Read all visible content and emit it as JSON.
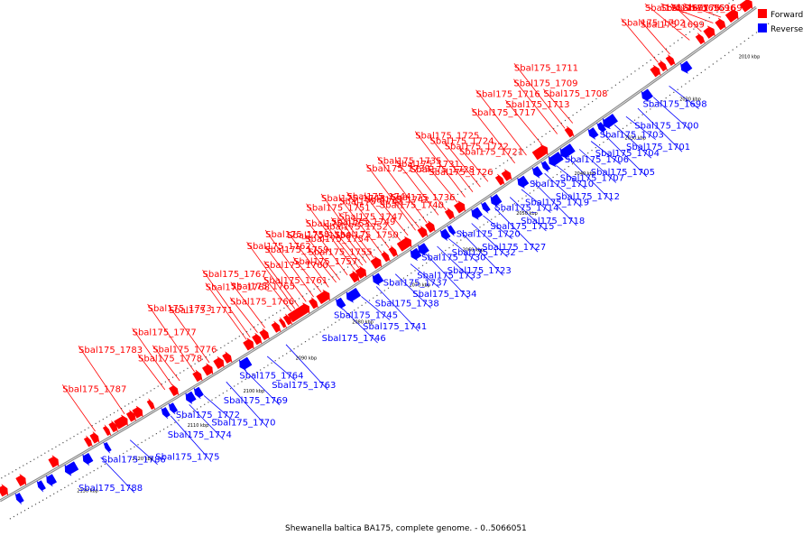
{
  "caption": "Shewanella baltica BA175, complete genome. - 0..5066051",
  "legend": {
    "forward": {
      "label": "Forward",
      "color": "#ff0000"
    },
    "reverse": {
      "label": "Reverse",
      "color": "#0000ff"
    }
  },
  "colors": {
    "forward": "#ff0000",
    "reverse": "#0000ff",
    "backbone": "#888888"
  },
  "kbp_marks": [
    {
      "label": "2010 kbp",
      "pos": 0.045
    },
    {
      "label": "2020 kbp",
      "pos": 0.12
    },
    {
      "label": "2030 kbp",
      "pos": 0.19
    },
    {
      "label": "2040 kbp",
      "pos": 0.255
    },
    {
      "label": "2050 kbp",
      "pos": 0.33
    },
    {
      "label": "2060 kbp",
      "pos": 0.4
    },
    {
      "label": "2070 kbp",
      "pos": 0.47
    },
    {
      "label": "2080 kbp",
      "pos": 0.545
    },
    {
      "label": "2090 kbp",
      "pos": 0.62
    },
    {
      "label": "2100 kbp",
      "pos": 0.69
    },
    {
      "label": "2110 kbp",
      "pos": 0.765
    },
    {
      "label": "2120 kbp",
      "pos": 0.84
    },
    {
      "label": "2130 kbp",
      "pos": 0.915
    }
  ],
  "reverse_labels": [
    {
      "text": "Sbal175_1698",
      "pos": 0.12
    },
    {
      "text": "Sbal175_1700",
      "pos": 0.14
    },
    {
      "text": "Sbal175_1701",
      "pos": 0.16
    },
    {
      "text": "Sbal175_1703",
      "pos": 0.175
    },
    {
      "text": "Sbal175_1704",
      "pos": 0.19
    },
    {
      "text": "Sbal175_1705",
      "pos": 0.205
    },
    {
      "text": "Sbal175_1706",
      "pos": 0.22
    },
    {
      "text": "Sbal175_1707",
      "pos": 0.235
    },
    {
      "text": "Sbal175_1712",
      "pos": 0.25
    },
    {
      "text": "Sbal175_1710",
      "pos": 0.265
    },
    {
      "text": "Sbal175_1719",
      "pos": 0.28
    },
    {
      "text": "Sbal175_1718",
      "pos": 0.295
    },
    {
      "text": "Sbal175_1714",
      "pos": 0.31
    },
    {
      "text": "Sbal175_1715",
      "pos": 0.325
    },
    {
      "text": "Sbal175_1727",
      "pos": 0.345
    },
    {
      "text": "Sbal175_1720",
      "pos": 0.36
    },
    {
      "text": "Sbal175_1732",
      "pos": 0.375
    },
    {
      "text": "Sbal175_1723",
      "pos": 0.39
    },
    {
      "text": "Sbal175_1730",
      "pos": 0.405
    },
    {
      "text": "Sbal175_1733",
      "pos": 0.42
    },
    {
      "text": "Sbal175_1734",
      "pos": 0.435
    },
    {
      "text": "Sbal175_1737",
      "pos": 0.455
    },
    {
      "text": "Sbal175_1738",
      "pos": 0.475
    },
    {
      "text": "Sbal175_1741",
      "pos": 0.5
    },
    {
      "text": "Sbal175_1745",
      "pos": 0.52
    },
    {
      "text": "Sbal175_1746",
      "pos": 0.545
    },
    {
      "text": "Sbal175_1763",
      "pos": 0.62
    },
    {
      "text": "Sbal175_1764",
      "pos": 0.645
    },
    {
      "text": "Sbal175_1769",
      "pos": 0.675
    },
    {
      "text": "Sbal175_1770",
      "pos": 0.7
    },
    {
      "text": "Sbal175_1772",
      "pos": 0.73
    },
    {
      "text": "Sbal175_1774",
      "pos": 0.75
    },
    {
      "text": "Sbal175_1775",
      "pos": 0.775
    },
    {
      "text": "Sbal175_1786",
      "pos": 0.83
    },
    {
      "text": "Sbal175_1788",
      "pos": 0.87
    }
  ],
  "forward_labels": [
    {
      "text": "Sbal175_1696",
      "pos": 0.06
    },
    {
      "text": "Sbal175_1694",
      "pos": 0.035
    },
    {
      "text": "Sbal175_1697",
      "pos": 0.075
    },
    {
      "text": "Sbal175_1695",
      "pos": 0.045
    },
    {
      "text": "Sbal175_1699",
      "pos": 0.1
    },
    {
      "text": "Sbal175_1702",
      "pos": 0.115
    },
    {
      "text": "Sbal175_1709",
      "pos": 0.245
    },
    {
      "text": "Sbal175_1711",
      "pos": 0.235
    },
    {
      "text": "Sbal175_1708",
      "pos": 0.225
    },
    {
      "text": "Sbal175_1713",
      "pos": 0.265
    },
    {
      "text": "Sbal175_1717",
      "pos": 0.3
    },
    {
      "text": "Sbal175_1716",
      "pos": 0.285
    },
    {
      "text": "Sbal175_1721",
      "pos": 0.335
    },
    {
      "text": "Sbal175_1722",
      "pos": 0.345
    },
    {
      "text": "Sbal175_1724",
      "pos": 0.355
    },
    {
      "text": "Sbal175_1725",
      "pos": 0.365
    },
    {
      "text": "Sbal175_1726",
      "pos": 0.375
    },
    {
      "text": "Sbal175_1728",
      "pos": 0.39
    },
    {
      "text": "Sbal175_1731",
      "pos": 0.4
    },
    {
      "text": "Sbal175_1739",
      "pos": 0.43
    },
    {
      "text": "Sbal175_1740",
      "pos": 0.44
    },
    {
      "text": "Sbal175_1742",
      "pos": 0.45
    },
    {
      "text": "Sbal175_1744",
      "pos": 0.465
    },
    {
      "text": "Sbal175_1735",
      "pos": 0.415
    },
    {
      "text": "Sbal175_1736",
      "pos": 0.425
    },
    {
      "text": "Sbal175_1752",
      "pos": 0.505
    },
    {
      "text": "Sbal175_1743",
      "pos": 0.475
    },
    {
      "text": "Sbal175_1762",
      "pos": 0.59
    },
    {
      "text": "Sbal175_1755",
      "pos": 0.535
    },
    {
      "text": "Sbal175_1747",
      "pos": 0.485
    },
    {
      "text": "Sbal175_1756",
      "pos": 0.545
    },
    {
      "text": "Sbal175_1748",
      "pos": 0.49
    },
    {
      "text": "Sbal175_1757",
      "pos": 0.555
    },
    {
      "text": "Sbal175_1749",
      "pos": 0.495
    },
    {
      "text": "Sbal175_1768",
      "pos": 0.655
    },
    {
      "text": "Sbal175_1758",
      "pos": 0.565
    },
    {
      "text": "Sbal175_1750",
      "pos": 0.5
    },
    {
      "text": "Sbal175_1765",
      "pos": 0.63
    },
    {
      "text": "Sbal175_1759",
      "pos": 0.575
    },
    {
      "text": "Sbal175_1751",
      "pos": 0.51
    },
    {
      "text": "Sbal175_1766",
      "pos": 0.64
    },
    {
      "text": "Sbal175_1760",
      "pos": 0.585
    },
    {
      "text": "Sbal175_1753",
      "pos": 0.52
    },
    {
      "text": "Sbal175_1767",
      "pos": 0.65
    },
    {
      "text": "Sbal175_1761",
      "pos": 0.595
    },
    {
      "text": "Sbal175_1754",
      "pos": 0.53
    },
    {
      "text": "Sbal175_1771",
      "pos": 0.705
    },
    {
      "text": "Sbal175_1773",
      "pos": 0.725
    },
    {
      "text": "Sbal175_1776",
      "pos": 0.745
    },
    {
      "text": "Sbal175_1787",
      "pos": 0.86
    },
    {
      "text": "Sbal175_1777",
      "pos": 0.755
    },
    {
      "text": "Sbal175_1783",
      "pos": 0.82
    },
    {
      "text": "Sbal175_1778",
      "pos": 0.765
    }
  ],
  "genes": [
    {
      "s": 0.0,
      "e": 0.012,
      "strand": "+"
    },
    {
      "s": 0.018,
      "e": 0.03,
      "strand": "+"
    },
    {
      "s": 0.035,
      "e": 0.043,
      "strand": "+"
    },
    {
      "s": 0.048,
      "e": 0.058,
      "strand": "+"
    },
    {
      "s": 0.062,
      "e": 0.068,
      "strand": "+"
    },
    {
      "s": 0.09,
      "e": 0.1,
      "strand": "-"
    },
    {
      "s": 0.1,
      "e": 0.106,
      "strand": "+"
    },
    {
      "s": 0.11,
      "e": 0.116,
      "strand": "+"
    },
    {
      "s": 0.118,
      "e": 0.126,
      "strand": "+"
    },
    {
      "s": 0.14,
      "e": 0.15,
      "strand": "-"
    },
    {
      "s": 0.185,
      "e": 0.2,
      "strand": "-"
    },
    {
      "s": 0.2,
      "e": 0.206,
      "strand": "-"
    },
    {
      "s": 0.21,
      "e": 0.218,
      "strand": "-"
    },
    {
      "s": 0.23,
      "e": 0.236,
      "strand": "+"
    },
    {
      "s": 0.24,
      "e": 0.255,
      "strand": "-"
    },
    {
      "s": 0.255,
      "e": 0.27,
      "strand": "-"
    },
    {
      "s": 0.272,
      "e": 0.278,
      "strand": "-"
    },
    {
      "s": 0.282,
      "e": 0.29,
      "strand": "-"
    },
    {
      "s": 0.262,
      "e": 0.278,
      "strand": "+"
    },
    {
      "s": 0.3,
      "e": 0.31,
      "strand": "-"
    },
    {
      "s": 0.31,
      "e": 0.318,
      "strand": "+"
    },
    {
      "s": 0.32,
      "e": 0.326,
      "strand": "+"
    },
    {
      "s": 0.335,
      "e": 0.345,
      "strand": "-"
    },
    {
      "s": 0.35,
      "e": 0.356,
      "strand": "-"
    },
    {
      "s": 0.36,
      "e": 0.37,
      "strand": "-"
    },
    {
      "s": 0.37,
      "e": 0.38,
      "strand": "+"
    },
    {
      "s": 0.385,
      "e": 0.392,
      "strand": "+"
    },
    {
      "s": 0.395,
      "e": 0.4,
      "strand": "-"
    },
    {
      "s": 0.402,
      "e": 0.41,
      "strand": "-"
    },
    {
      "s": 0.41,
      "e": 0.418,
      "strand": "+"
    },
    {
      "s": 0.42,
      "e": 0.428,
      "strand": "+"
    },
    {
      "s": 0.43,
      "e": 0.44,
      "strand": "-"
    },
    {
      "s": 0.44,
      "e": 0.45,
      "strand": "-"
    },
    {
      "s": 0.44,
      "e": 0.455,
      "strand": "+"
    },
    {
      "s": 0.46,
      "e": 0.466,
      "strand": "+"
    },
    {
      "s": 0.47,
      "e": 0.476,
      "strand": "+"
    },
    {
      "s": 0.48,
      "e": 0.49,
      "strand": "+"
    },
    {
      "s": 0.49,
      "e": 0.5,
      "strand": "-"
    },
    {
      "s": 0.5,
      "e": 0.51,
      "strand": "+"
    },
    {
      "s": 0.51,
      "e": 0.518,
      "strand": "+"
    },
    {
      "s": 0.52,
      "e": 0.535,
      "strand": "-"
    },
    {
      "s": 0.54,
      "e": 0.548,
      "strand": "-"
    },
    {
      "s": 0.548,
      "e": 0.562,
      "strand": "+"
    },
    {
      "s": 0.565,
      "e": 0.572,
      "strand": "+"
    },
    {
      "s": 0.575,
      "e": 0.6,
      "strand": "+"
    },
    {
      "s": 0.6,
      "e": 0.606,
      "strand": "+"
    },
    {
      "s": 0.608,
      "e": 0.612,
      "strand": "+"
    },
    {
      "s": 0.615,
      "e": 0.622,
      "strand": "+"
    },
    {
      "s": 0.63,
      "e": 0.638,
      "strand": "+"
    },
    {
      "s": 0.64,
      "e": 0.648,
      "strand": "+"
    },
    {
      "s": 0.65,
      "e": 0.66,
      "strand": "+"
    },
    {
      "s": 0.665,
      "e": 0.678,
      "strand": "-"
    },
    {
      "s": 0.68,
      "e": 0.688,
      "strand": "+"
    },
    {
      "s": 0.69,
      "e": 0.7,
      "strand": "+"
    },
    {
      "s": 0.705,
      "e": 0.715,
      "strand": "+"
    },
    {
      "s": 0.72,
      "e": 0.728,
      "strand": "+"
    },
    {
      "s": 0.73,
      "e": 0.738,
      "strand": "-"
    },
    {
      "s": 0.74,
      "e": 0.75,
      "strand": "-"
    },
    {
      "s": 0.752,
      "e": 0.76,
      "strand": "+"
    },
    {
      "s": 0.765,
      "e": 0.772,
      "strand": "-"
    },
    {
      "s": 0.775,
      "e": 0.782,
      "strand": "-"
    },
    {
      "s": 0.785,
      "e": 0.79,
      "strand": "+"
    },
    {
      "s": 0.8,
      "e": 0.81,
      "strand": "+"
    },
    {
      "s": 0.81,
      "e": 0.818,
      "strand": "+"
    },
    {
      "s": 0.82,
      "e": 0.835,
      "strand": "+"
    },
    {
      "s": 0.835,
      "e": 0.842,
      "strand": "+"
    },
    {
      "s": 0.845,
      "e": 0.85,
      "strand": "+"
    },
    {
      "s": 0.855,
      "e": 0.86,
      "strand": "-"
    },
    {
      "s": 0.86,
      "e": 0.868,
      "strand": "+"
    },
    {
      "s": 0.87,
      "e": 0.876,
      "strand": "+"
    },
    {
      "s": 0.88,
      "e": 0.89,
      "strand": "-"
    },
    {
      "s": 0.9,
      "e": 0.915,
      "strand": "-"
    },
    {
      "s": 0.915,
      "e": 0.925,
      "strand": "+"
    },
    {
      "s": 0.93,
      "e": 0.94,
      "strand": "-"
    },
    {
      "s": 0.945,
      "e": 0.952,
      "strand": "-"
    },
    {
      "s": 0.96,
      "e": 0.97,
      "strand": "+"
    },
    {
      "s": 0.975,
      "e": 0.982,
      "strand": "-"
    },
    {
      "s": 0.985,
      "e": 0.995,
      "strand": "+"
    }
  ]
}
